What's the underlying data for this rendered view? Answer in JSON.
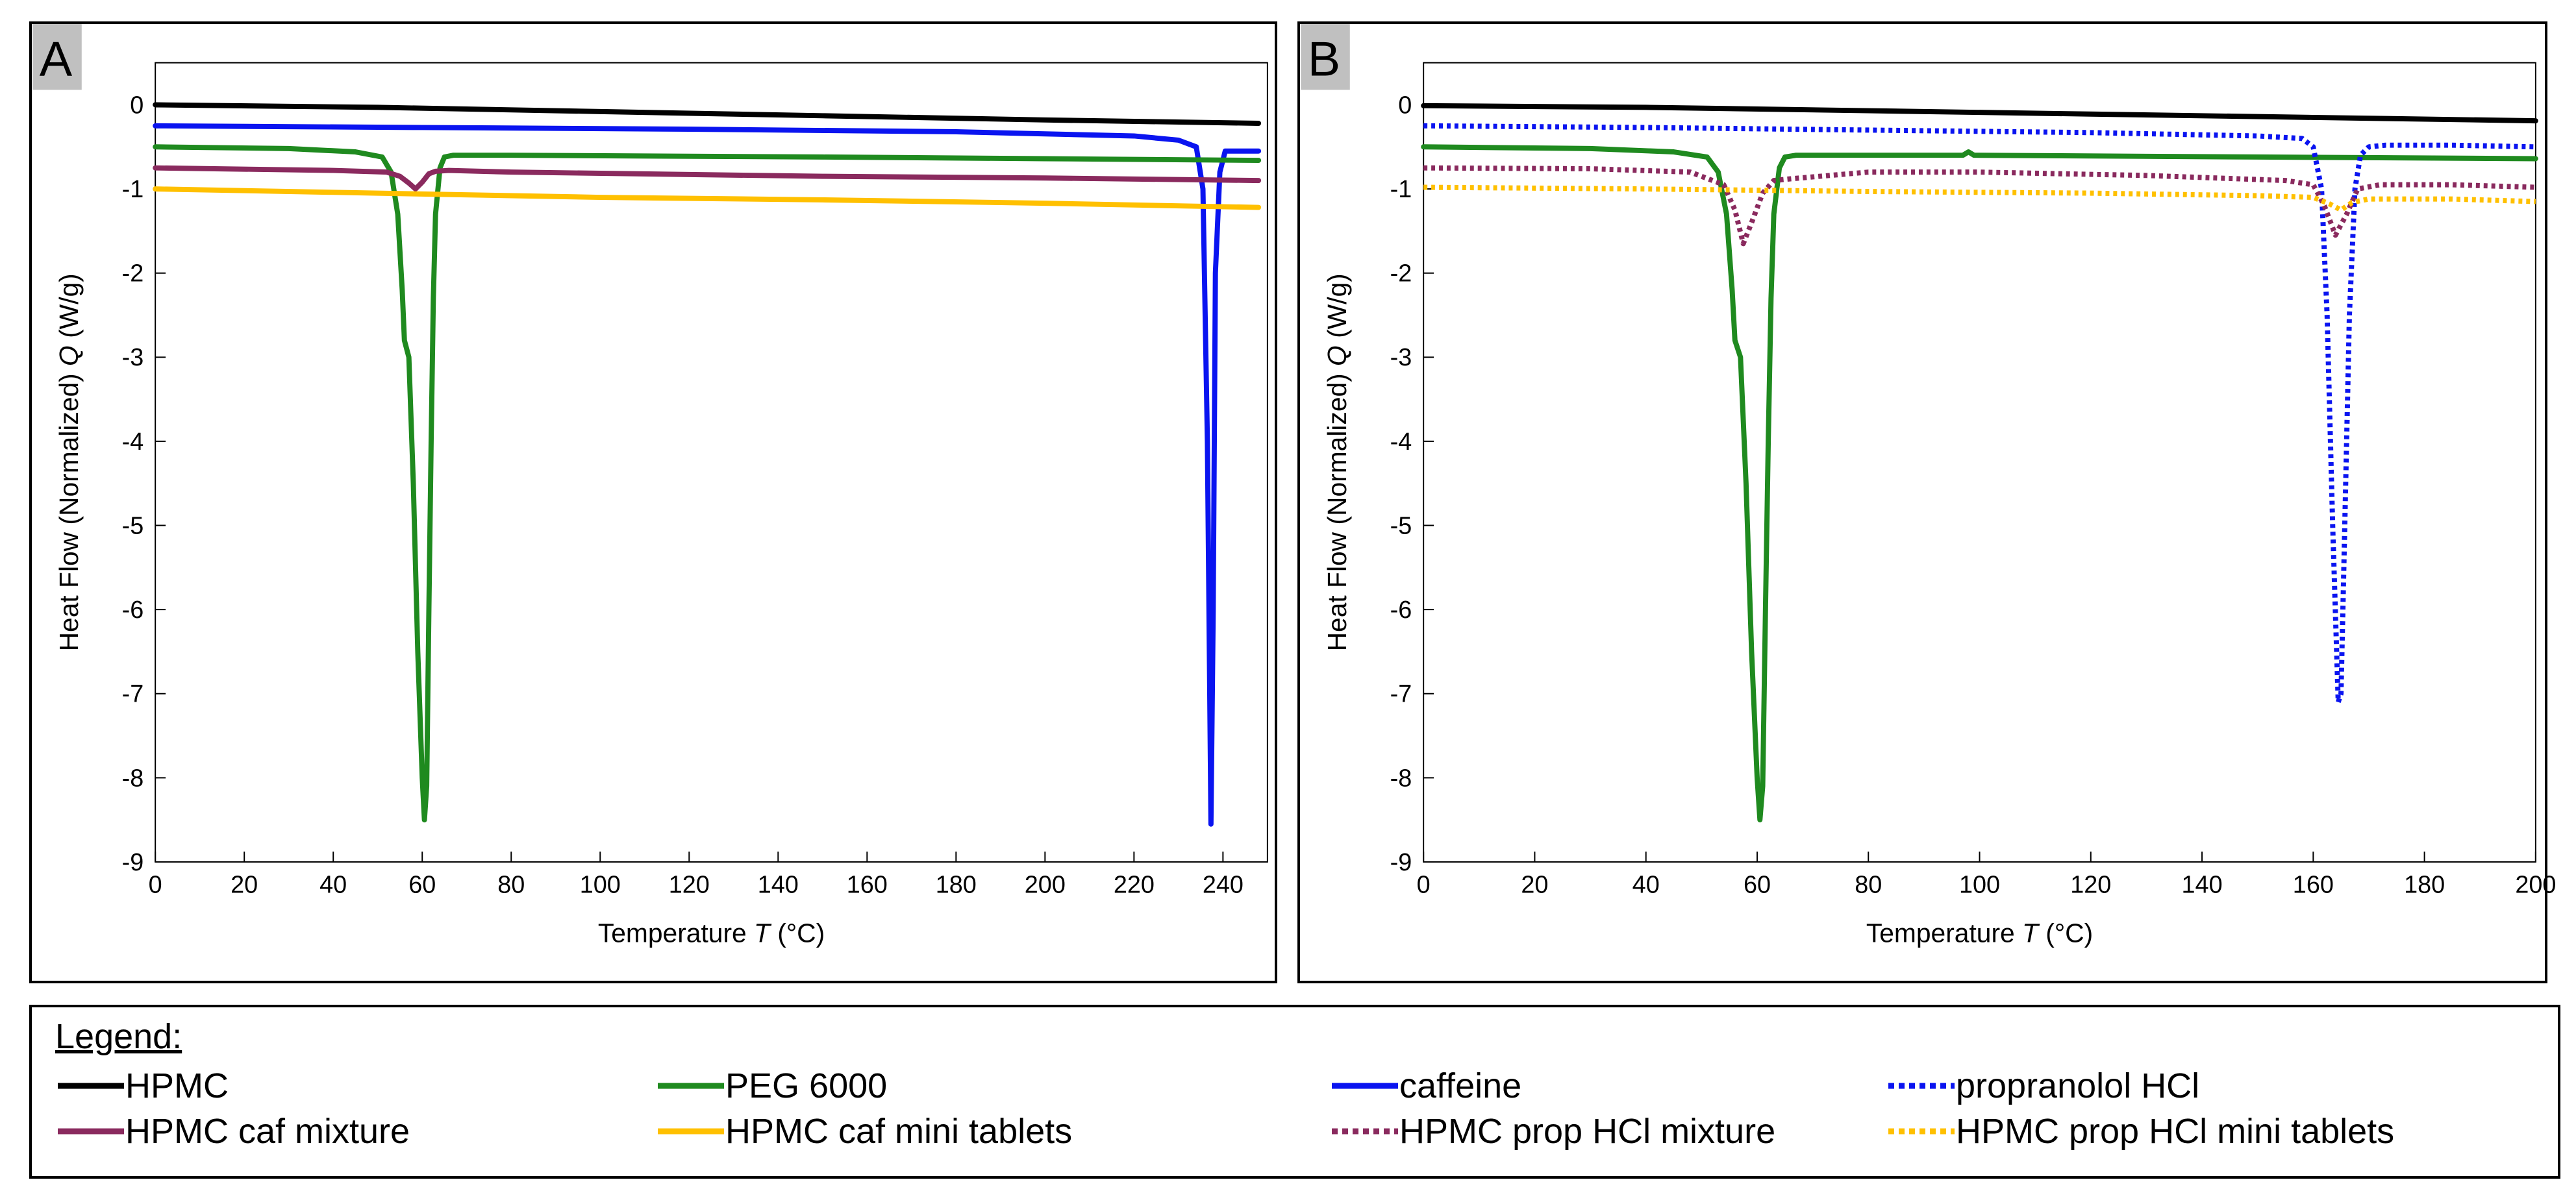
{
  "legend": {
    "title": "Legend:",
    "items": [
      {
        "label": "HPMC",
        "color": "#000000",
        "style": "solid"
      },
      {
        "label": "PEG 6000",
        "color": "#1f8a1f",
        "style": "solid"
      },
      {
        "label": "caffeine",
        "color": "#0a14f0",
        "style": "solid"
      },
      {
        "label": "propranolol HCl",
        "color": "#0a14f0",
        "style": "dotted"
      },
      {
        "label": "HPMC caf mixture",
        "color": "#8a2a5e",
        "style": "solid"
      },
      {
        "label": "HPMC caf mini tablets",
        "color": "#ffc000",
        "style": "solid"
      },
      {
        "label": "HPMC prop HCl mixture",
        "color": "#8a2a5e",
        "style": "dotted"
      },
      {
        "label": "HPMC prop HCl mini tablets",
        "color": "#ffc000",
        "style": "dotted"
      }
    ]
  },
  "chart_data": [
    {
      "type": "line",
      "panel": "A",
      "xlabel": "Temperature",
      "xlabel_symbol": "T",
      "xlabel_unit": "(°C)",
      "ylabel": "Heat Flow (Normalized)",
      "ylabel_symbol": "Q",
      "ylabel_unit": "(W/g)",
      "xlim": [
        0,
        250
      ],
      "ylim": [
        -9,
        0.5
      ],
      "xticks": [
        0,
        20,
        40,
        60,
        80,
        100,
        120,
        140,
        160,
        180,
        200,
        220,
        240
      ],
      "yticks": [
        0,
        -1,
        -2,
        -3,
        -4,
        -5,
        -6,
        -7,
        -8,
        -9
      ],
      "series": [
        {
          "name": "HPMC",
          "color": "#000000",
          "style": "solid",
          "x": [
            0,
            50,
            100,
            150,
            200,
            248
          ],
          "y": [
            0,
            -0.03,
            -0.08,
            -0.13,
            -0.18,
            -0.22
          ]
        },
        {
          "name": "caffeine",
          "color": "#0a14f0",
          "style": "solid",
          "x": [
            0,
            60,
            120,
            180,
            220,
            230,
            234,
            235.5,
            236.5,
            237.3,
            237.8,
            238.3,
            239.3,
            240.5,
            243,
            248
          ],
          "y": [
            -0.25,
            -0.27,
            -0.29,
            -0.32,
            -0.37,
            -0.42,
            -0.5,
            -1.0,
            -4.0,
            -8.55,
            -6.0,
            -2.0,
            -0.8,
            -0.55,
            -0.55,
            -0.55
          ]
        },
        {
          "name": "PEG 6000",
          "color": "#1f8a1f",
          "style": "solid",
          "x": [
            0,
            30,
            45,
            51,
            53,
            54.5,
            55.5,
            56,
            57,
            58,
            59,
            60,
            60.5,
            61,
            61.5,
            62,
            62.5,
            63,
            64,
            65,
            67,
            80,
            150,
            200,
            248
          ],
          "y": [
            -0.5,
            -0.52,
            -0.56,
            -0.62,
            -0.8,
            -1.3,
            -2.2,
            -2.8,
            -3.0,
            -4.5,
            -6.5,
            -8.0,
            -8.5,
            -8.1,
            -6.0,
            -4.0,
            -2.3,
            -1.3,
            -0.75,
            -0.62,
            -0.6,
            -0.6,
            -0.62,
            -0.64,
            -0.66
          ]
        },
        {
          "name": "HPMC caf mixture",
          "color": "#8a2a5e",
          "style": "solid",
          "x": [
            0,
            40,
            52,
            55,
            57,
            58.5,
            60,
            61.5,
            63,
            66,
            80,
            150,
            200,
            248
          ],
          "y": [
            -0.75,
            -0.78,
            -0.8,
            -0.85,
            -0.93,
            -1.0,
            -0.92,
            -0.82,
            -0.79,
            -0.78,
            -0.8,
            -0.85,
            -0.87,
            -0.9
          ]
        },
        {
          "name": "HPMC caf mini tablets",
          "color": "#ffc000",
          "style": "solid",
          "x": [
            0,
            50,
            100,
            150,
            200,
            248
          ],
          "y": [
            -1.0,
            -1.05,
            -1.1,
            -1.13,
            -1.17,
            -1.22
          ]
        }
      ]
    },
    {
      "type": "line",
      "panel": "B",
      "xlabel": "Temperature",
      "xlabel_symbol": "T",
      "xlabel_unit": "(°C)",
      "ylabel": "Heat Flow (Normalized)",
      "ylabel_symbol": "Q",
      "ylabel_unit": "(W/g)",
      "xlim": [
        0,
        200
      ],
      "ylim": [
        -9,
        0.5
      ],
      "xticks": [
        0,
        20,
        40,
        60,
        80,
        100,
        120,
        140,
        160,
        180,
        200
      ],
      "yticks": [
        0,
        -1,
        -2,
        -3,
        -4,
        -5,
        -6,
        -7,
        -8,
        -9
      ],
      "series": [
        {
          "name": "HPMC",
          "color": "#000000",
          "style": "solid",
          "x": [
            0,
            40,
            80,
            120,
            160,
            200
          ],
          "y": [
            -0.01,
            -0.03,
            -0.07,
            -0.11,
            -0.15,
            -0.19
          ]
        },
        {
          "name": "PEG 6000",
          "color": "#1f8a1f",
          "style": "solid",
          "x": [
            0,
            30,
            45,
            51,
            53,
            54.5,
            55.5,
            56,
            57,
            58,
            59,
            60,
            60.5,
            61,
            61.5,
            62,
            62.5,
            63,
            64,
            65,
            67,
            80,
            97,
            98,
            99,
            150,
            200
          ],
          "y": [
            -0.5,
            -0.52,
            -0.56,
            -0.62,
            -0.8,
            -1.3,
            -2.2,
            -2.8,
            -3.0,
            -4.5,
            -6.5,
            -8.0,
            -8.5,
            -8.1,
            -6.0,
            -4.0,
            -2.3,
            -1.3,
            -0.75,
            -0.62,
            -0.6,
            -0.6,
            -0.6,
            -0.56,
            -0.6,
            -0.62,
            -0.64
          ]
        },
        {
          "name": "propranolol HCl",
          "color": "#0a14f0",
          "style": "dotted",
          "x": [
            0,
            40,
            80,
            120,
            150,
            158,
            160,
            161.5,
            162.5,
            163.5,
            164.5,
            165,
            165.5,
            166.5,
            167.5,
            168.5,
            170,
            173,
            185,
            200
          ],
          "y": [
            -0.25,
            -0.27,
            -0.3,
            -0.33,
            -0.37,
            -0.4,
            -0.5,
            -1.0,
            -2.5,
            -5.0,
            -7.1,
            -7.0,
            -5.5,
            -2.5,
            -1.0,
            -0.6,
            -0.5,
            -0.48,
            -0.48,
            -0.5
          ]
        },
        {
          "name": "HPMC prop HCl mixture",
          "color": "#8a2a5e",
          "style": "dotted",
          "x": [
            0,
            30,
            48,
            54,
            56,
            57.5,
            59,
            61,
            63,
            66,
            80,
            100,
            130,
            155,
            160,
            162,
            164,
            166,
            168,
            172,
            185,
            200
          ],
          "y": [
            -0.75,
            -0.76,
            -0.8,
            -0.95,
            -1.25,
            -1.65,
            -1.4,
            -1.05,
            -0.9,
            -0.88,
            -0.8,
            -0.8,
            -0.84,
            -0.9,
            -0.95,
            -1.2,
            -1.55,
            -1.3,
            -1.0,
            -0.95,
            -0.95,
            -0.98
          ]
        },
        {
          "name": "HPMC prop HCl mini tablets",
          "color": "#ffc000",
          "style": "dotted",
          "x": [
            0,
            40,
            80,
            120,
            150,
            160,
            163,
            165,
            167,
            170,
            185,
            200
          ],
          "y": [
            -0.98,
            -1.0,
            -1.03,
            -1.05,
            -1.08,
            -1.1,
            -1.18,
            -1.25,
            -1.16,
            -1.12,
            -1.12,
            -1.15
          ]
        }
      ]
    }
  ]
}
